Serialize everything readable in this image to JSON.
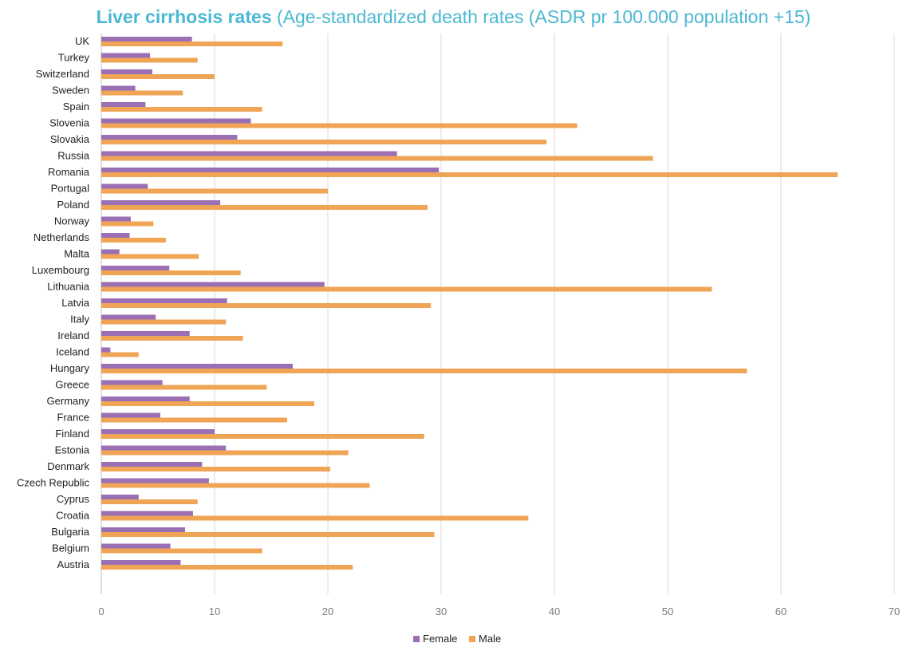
{
  "chart_data": {
    "type": "bar",
    "orientation": "horizontal",
    "title_bold": "Liver cirrhosis rates",
    "title_rest": "(Age-standardized death rates (ASDR pr 100.000 population +15)",
    "categories": [
      "UK",
      "Turkey",
      "Switzerland",
      "Sweden",
      "Spain",
      "Slovenia",
      "Slovakia",
      "Russia",
      "Romania",
      "Portugal",
      "Poland",
      "Norway",
      "Netherlands",
      "Malta",
      "Luxembourg",
      "Lithuania",
      "Latvia",
      "Italy",
      "Ireland",
      "Iceland",
      "Hungary",
      "Greece",
      "Germany",
      "France",
      "Finland",
      "Estonia",
      "Denmark",
      "Czech Republic",
      "Cyprus",
      "Croatia",
      "Bulgaria",
      "Belgium",
      "Austria"
    ],
    "series": [
      {
        "name": "Female",
        "color": "#9b6fb3",
        "values": [
          8.0,
          4.3,
          4.5,
          3.0,
          3.9,
          13.2,
          12.0,
          26.1,
          29.8,
          4.1,
          10.5,
          2.6,
          2.5,
          1.6,
          6.0,
          19.7,
          11.1,
          4.8,
          7.8,
          0.8,
          16.9,
          5.4,
          7.8,
          5.2,
          10.0,
          11.0,
          8.9,
          9.5,
          3.3,
          8.1,
          7.4,
          6.1,
          7.0
        ]
      },
      {
        "name": "Male",
        "color": "#f0a455",
        "values": [
          16.0,
          8.5,
          10.0,
          7.2,
          14.2,
          42.0,
          39.3,
          48.7,
          65.0,
          20.0,
          28.8,
          4.6,
          5.7,
          8.6,
          12.3,
          53.9,
          29.1,
          11.0,
          12.5,
          3.3,
          57.0,
          14.6,
          18.8,
          16.4,
          28.5,
          21.8,
          20.2,
          23.7,
          8.5,
          37.7,
          29.4,
          14.2,
          22.2
        ]
      }
    ],
    "x_ticks": [
      "0",
      "10",
      "20",
      "30",
      "40",
      "50",
      "60",
      "70"
    ],
    "xlim": [
      0,
      70
    ],
    "grid": "vertical",
    "legend_position": "bottom-center"
  }
}
